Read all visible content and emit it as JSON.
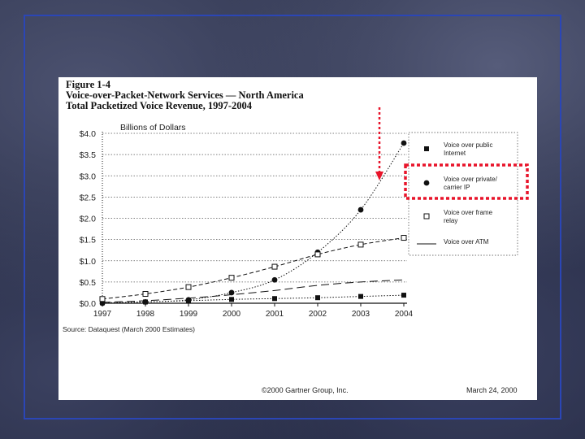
{
  "slide": {
    "title_lines": [
      "Figure 1-4",
      "Voice-over-Packet-Network Services — North America",
      "Total Packetized Voice Revenue, 1997-2004"
    ],
    "unit_label": "Billions of Dollars",
    "source": "Source: Dataquest (March 2000 Estimates)",
    "copyright": "©2000 Gartner Group, Inc.",
    "date": "March 24, 2000"
  },
  "colors": {
    "frame": "#2b46b6",
    "highlight": "#e8142a",
    "ink": "#111111"
  },
  "chart_data": {
    "type": "line",
    "x": [
      "1997",
      "1998",
      "1999",
      "2000",
      "2001",
      "2002",
      "2003",
      "2004"
    ],
    "ylim": [
      0,
      4.0
    ],
    "y_ticks": [
      0,
      0.5,
      1.0,
      1.5,
      2.0,
      2.5,
      3.0,
      3.5,
      4.0
    ],
    "y_tick_labels": [
      "$0.0",
      "$0.5",
      "$1.0",
      "$1.5",
      "$2.0",
      "$2.5",
      "$3.0",
      "$3.5",
      "$4.0"
    ],
    "series": [
      {
        "name": "Voice over public Internet",
        "legend_lines": [
          "Voice over public",
          "Internet"
        ],
        "marker": "filled-square",
        "line": "dotted",
        "values": [
          0.01,
          0.03,
          0.06,
          0.09,
          0.11,
          0.13,
          0.16,
          0.19
        ]
      },
      {
        "name": "Voice over private/ carrier IP",
        "legend_lines": [
          "Voice over private/",
          "carrier IP"
        ],
        "marker": "filled-circle",
        "line": "dotted",
        "values": [
          0.0,
          0.03,
          0.08,
          0.25,
          0.55,
          1.2,
          2.2,
          3.77
        ]
      },
      {
        "name": "Voice over frame relay",
        "legend_lines": [
          "Voice over frame",
          "relay"
        ],
        "marker": "open-square",
        "line": "dashed",
        "values": [
          0.1,
          0.22,
          0.38,
          0.6,
          0.86,
          1.15,
          1.38,
          1.54
        ]
      },
      {
        "name": "Voice over ATM",
        "legend_lines": [
          "Voice over ATM"
        ],
        "marker": "none",
        "line": "long-dash",
        "values": [
          0.02,
          0.06,
          0.12,
          0.2,
          0.3,
          0.42,
          0.5,
          0.55
        ]
      }
    ],
    "grid": "horizontal dotted",
    "legend": "right",
    "annotations": [
      "red dotted arrow pointing down to Voice over private/ carrier IP curve",
      "red dotted box around legend entry Voice over private/ carrier IP"
    ]
  }
}
